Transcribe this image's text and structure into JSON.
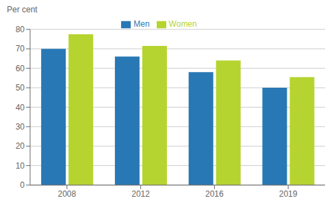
{
  "chart_data": {
    "type": "bar",
    "ylabel": "Per cent",
    "categories": [
      "2008",
      "2012",
      "2016",
      "2019"
    ],
    "series": [
      {
        "name": "Men",
        "color": "#2878b5",
        "values": [
          70,
          66,
          58,
          50
        ]
      },
      {
        "name": "Women",
        "color": "#b5d430",
        "values": [
          77.5,
          71.5,
          64,
          55.5
        ]
      }
    ],
    "ylim": [
      0,
      80
    ],
    "yticks": [
      0,
      10,
      20,
      30,
      40,
      50,
      60,
      70,
      80
    ],
    "grid": true,
    "legend": "top"
  }
}
